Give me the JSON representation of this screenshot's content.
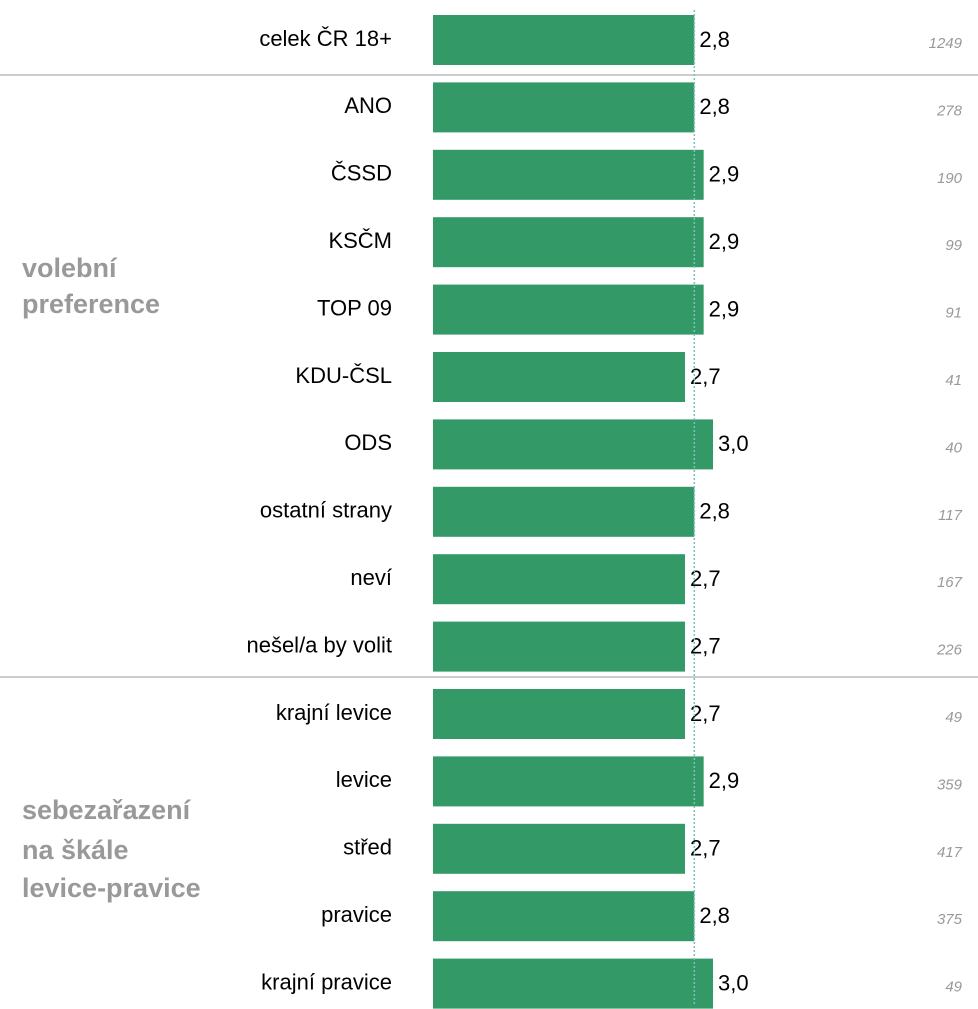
{
  "chart_data": {
    "type": "bar",
    "orientation": "horizontal",
    "color": "#339966",
    "categories": [
      "celek ČR 18+",
      "ANO",
      "ČSSD",
      "KSČM",
      "TOP 09",
      "KDU-ČSL",
      "ODS",
      "ostatní strany",
      "neví",
      "nešel/a by volit",
      "krajní levice",
      "levice",
      "střed",
      "pravice",
      "krajní pravice"
    ],
    "values": [
      2.8,
      2.8,
      2.9,
      2.9,
      2.9,
      2.7,
      3.0,
      2.8,
      2.7,
      2.7,
      2.7,
      2.9,
      2.7,
      2.8,
      3.0
    ],
    "value_labels": [
      "2,8",
      "2,8",
      "2,9",
      "2,9",
      "2,9",
      "2,7",
      "3,0",
      "2,8",
      "2,7",
      "2,7",
      "2,7",
      "2,9",
      "2,7",
      "2,8",
      "3,0"
    ],
    "n": [
      1249,
      278,
      190,
      99,
      91,
      41,
      40,
      117,
      167,
      226,
      49,
      359,
      417,
      375,
      49
    ],
    "groups": [
      {
        "lines": [
          "volební",
          "preference"
        ]
      },
      {
        "lines": [
          "sebezařazení",
          "na škále",
          "levice-pravice"
        ]
      }
    ],
    "xlim": [
      0,
      3
    ]
  }
}
